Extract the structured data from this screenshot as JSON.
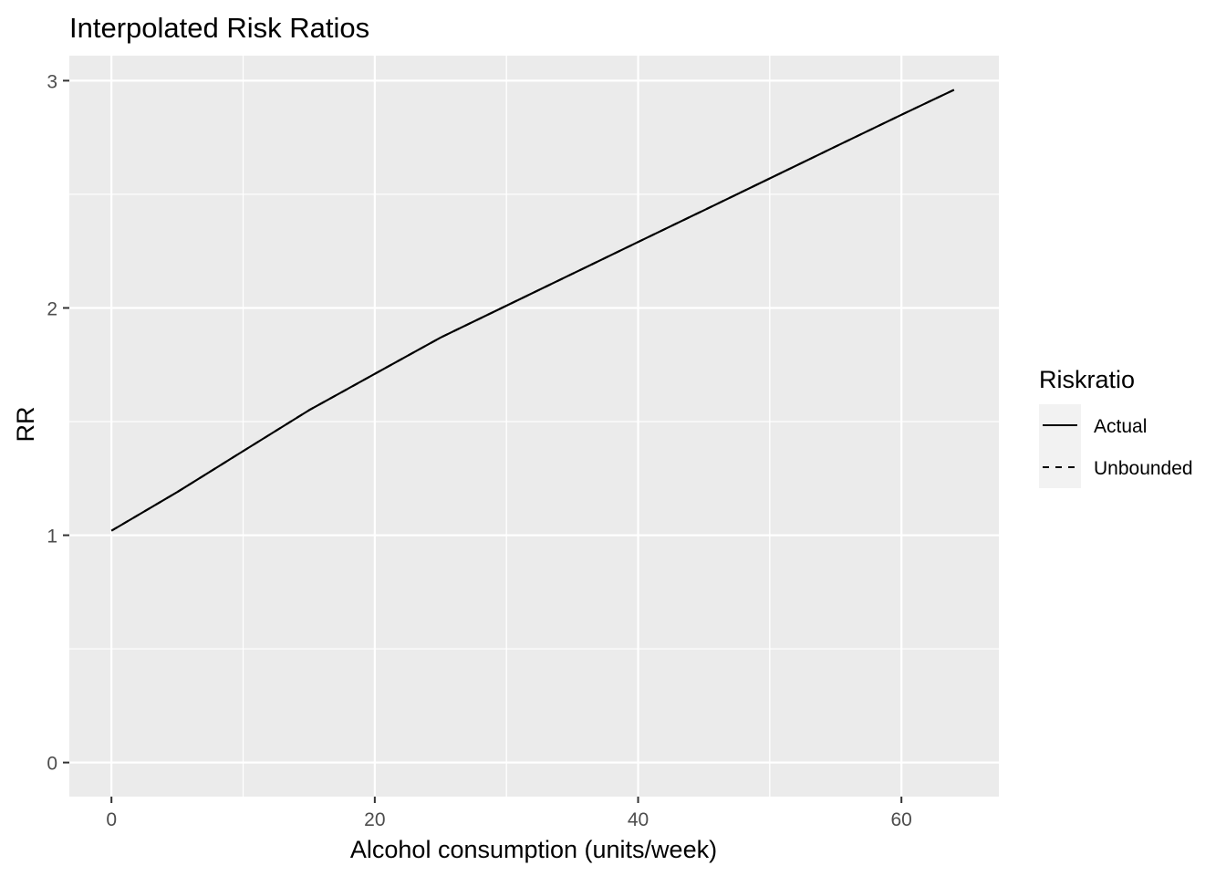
{
  "chart_data": {
    "type": "line",
    "title": "Interpolated Risk Ratios",
    "xlabel": "Alcohol consumption (units/week)",
    "ylabel": "RR",
    "xlim": [
      -3.2,
      67.4
    ],
    "ylim": [
      -0.15,
      3.11
    ],
    "x_ticks": [
      0,
      20,
      40,
      60
    ],
    "x_tick_labels": [
      "0",
      "20",
      "40",
      "60"
    ],
    "y_ticks": [
      0,
      1,
      2,
      3
    ],
    "y_tick_labels": [
      "0",
      "1",
      "2",
      "3"
    ],
    "grid": true,
    "panel_color": "#ebebeb",
    "grid_color": "#ffffff",
    "legend": {
      "title": "Riskratio",
      "position": "right",
      "entries": [
        {
          "label": "Actual",
          "linetype": "solid"
        },
        {
          "label": "Unbounded",
          "linetype": "dashed"
        }
      ]
    },
    "series": [
      {
        "name": "Actual",
        "linetype": "solid",
        "color": "#000000",
        "x": [
          0,
          5,
          10,
          15,
          20,
          25,
          30,
          35,
          40,
          45,
          50,
          55,
          60,
          64
        ],
        "y": [
          1.02,
          1.19,
          1.37,
          1.55,
          1.71,
          1.87,
          2.01,
          2.15,
          2.29,
          2.43,
          2.57,
          2.71,
          2.85,
          2.96
        ]
      },
      {
        "name": "Unbounded",
        "linetype": "dashed",
        "color": "#000000",
        "x": [
          0,
          5,
          10,
          15,
          20,
          25,
          30,
          35,
          40,
          45,
          50,
          55,
          60,
          64
        ],
        "y": [
          1.02,
          1.19,
          1.37,
          1.55,
          1.71,
          1.87,
          2.01,
          2.15,
          2.29,
          2.43,
          2.57,
          2.71,
          2.85,
          2.96
        ]
      }
    ]
  }
}
